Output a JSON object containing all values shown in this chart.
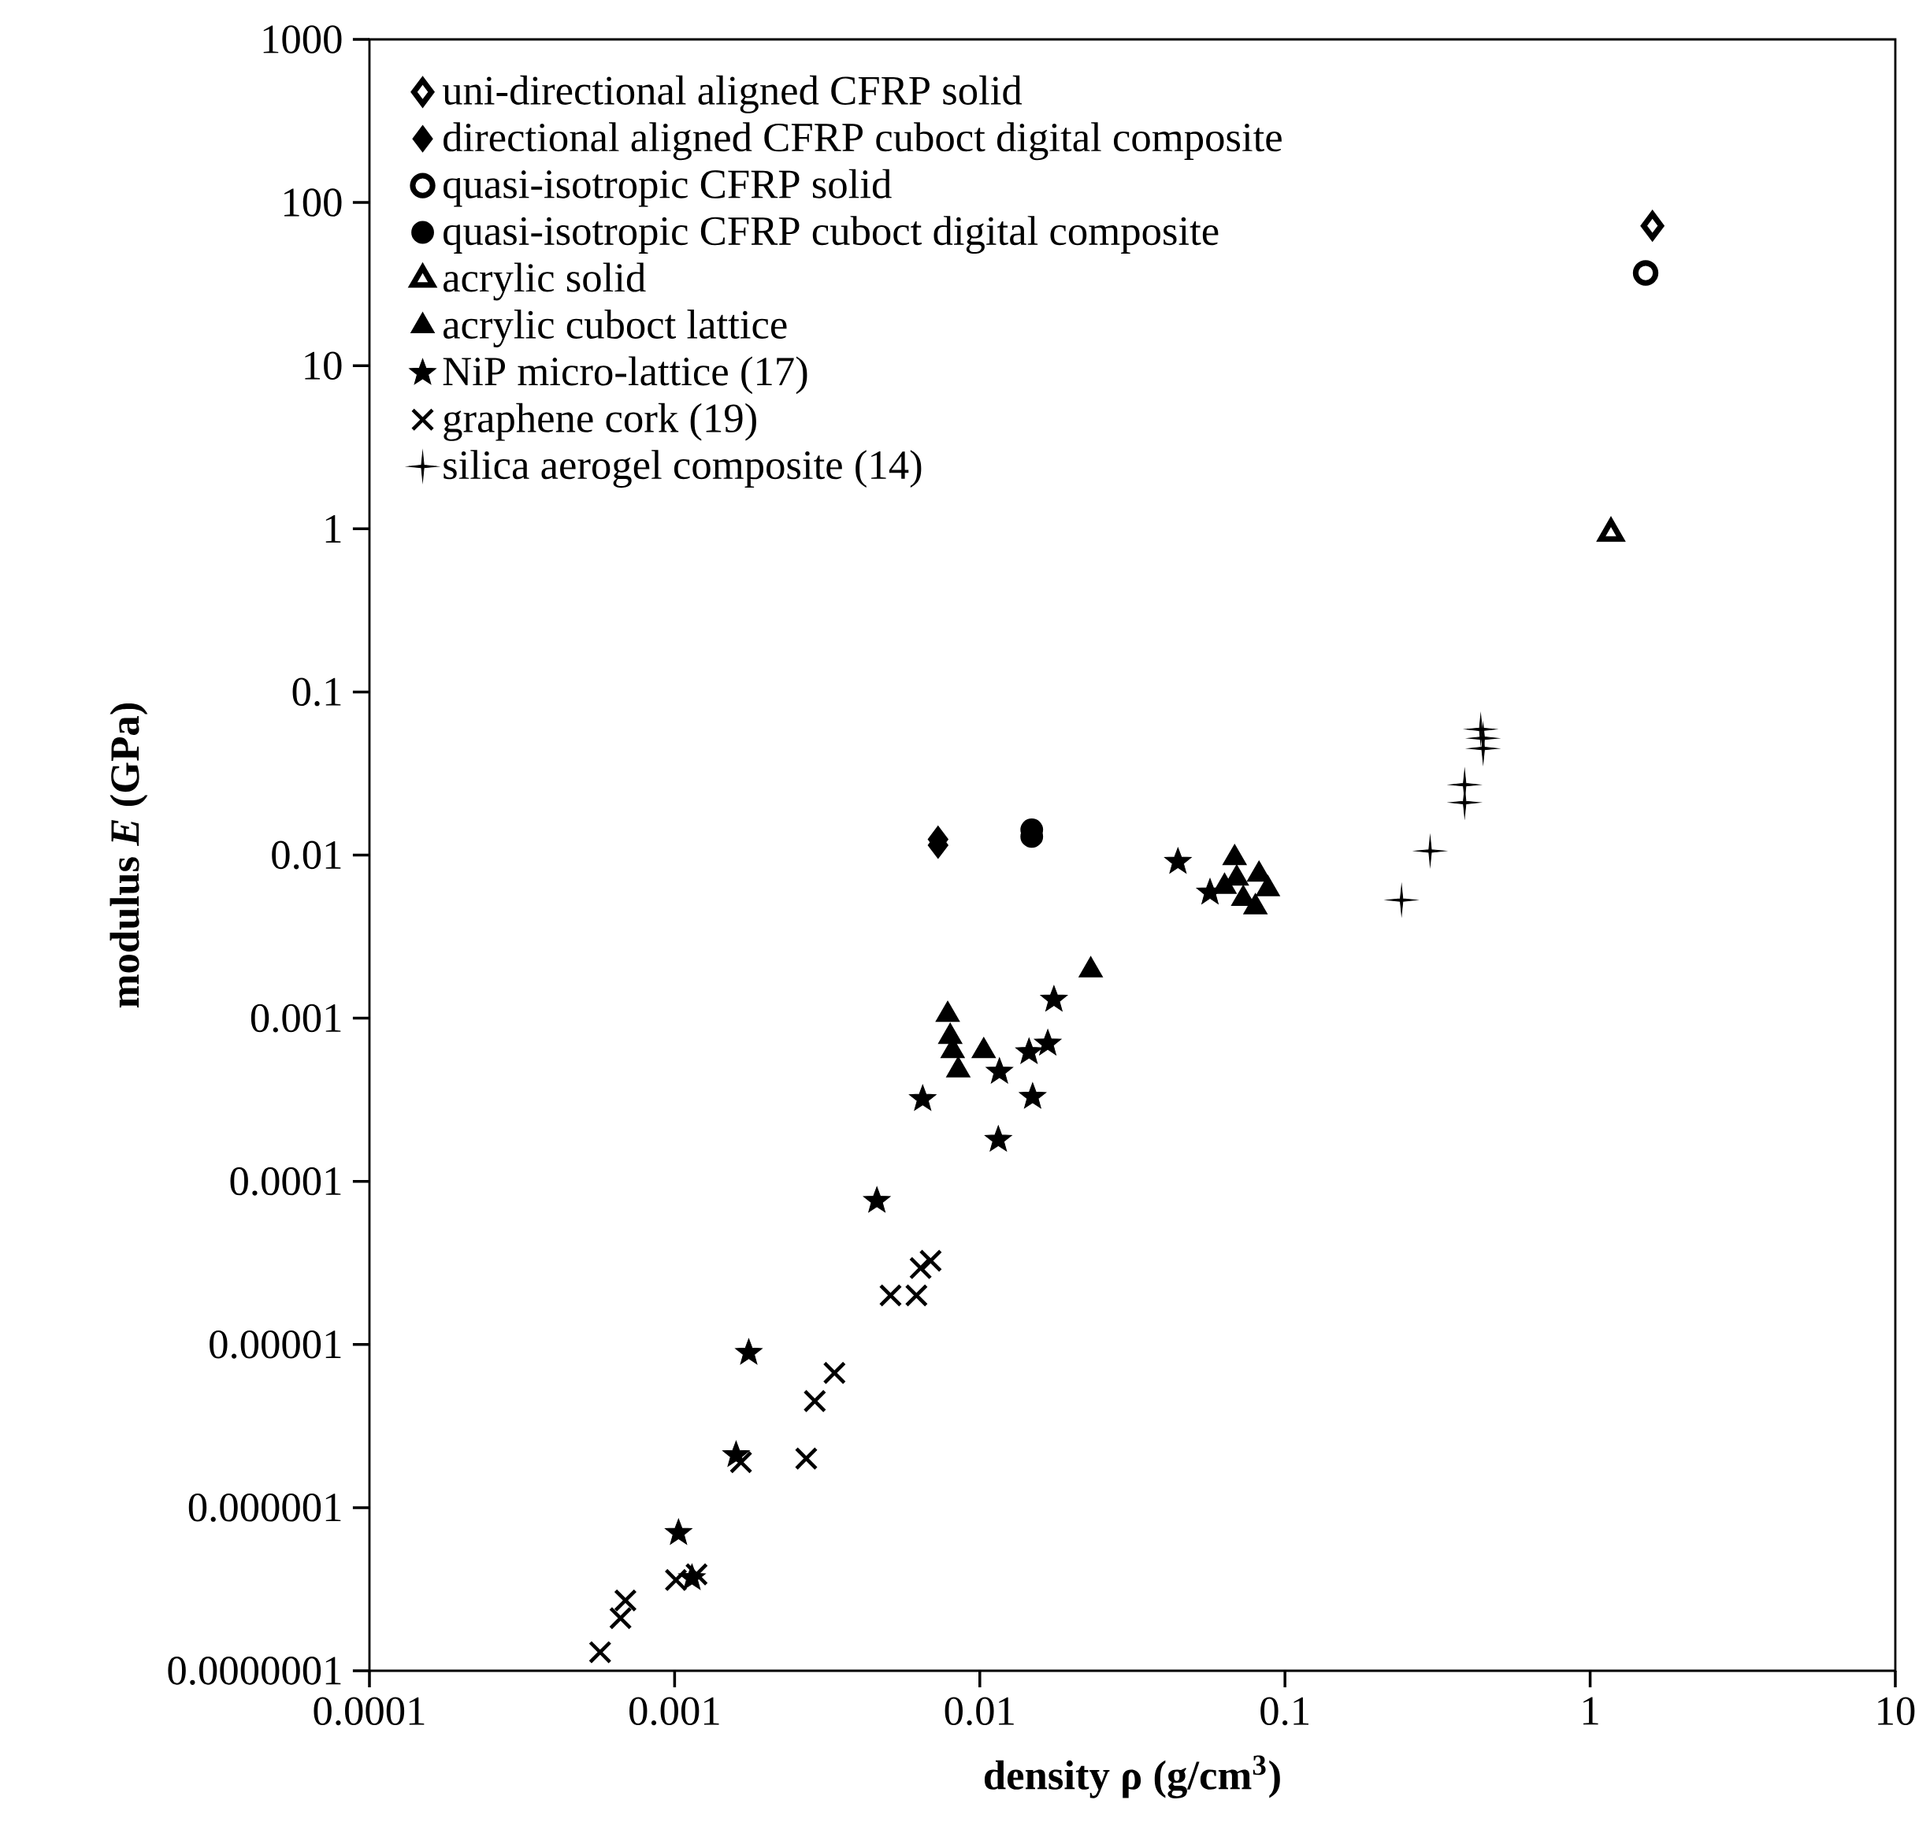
{
  "chart_data": {
    "type": "scatter",
    "xlabel": "density ρ (g/cm$^{3}$)",
    "ylabel": "modulus *E* (GPa)",
    "log": "xy",
    "grid": false,
    "legend": "top left",
    "xlim": [
      0.0001,
      10
    ],
    "ylim": [
      1e-07,
      1000
    ],
    "xticks": [
      {
        "value": 0.0001,
        "label": "0.0001"
      },
      {
        "value": 0.001,
        "label": "0.001"
      },
      {
        "value": 0.01,
        "label": "0.01"
      },
      {
        "value": 0.1,
        "label": "0.1"
      },
      {
        "value": 1,
        "label": "1"
      },
      {
        "value": 10,
        "label": "10"
      }
    ],
    "yticks": [
      {
        "value": 1e-07,
        "label": "0.0000001"
      },
      {
        "value": 1e-06,
        "label": "0.000001"
      },
      {
        "value": 1e-05,
        "label": "0.00001"
      },
      {
        "value": 0.0001,
        "label": "0.0001"
      },
      {
        "value": 0.001,
        "label": "0.001"
      },
      {
        "value": 0.01,
        "label": "0.01"
      },
      {
        "value": 0.1,
        "label": "0.1"
      },
      {
        "value": 1,
        "label": "1"
      },
      {
        "value": 10,
        "label": "10"
      },
      {
        "value": 100,
        "label": "100"
      },
      {
        "value": 1000,
        "label": "1000"
      }
    ],
    "series": [
      {
        "name": "uni-directional aligned CFRP solid",
        "color": "#000000",
        "colors": [
          "#ffffff"
        ],
        "marker": "diamond",
        "x": [
          1.6
        ],
        "values": [
          72
        ]
      },
      {
        "name": "directional aligned CFRP cuboct digital composite",
        "color": "#000000",
        "marker": "diamond",
        "x": [
          0.0073,
          0.0073
        ],
        "values": [
          0.0125,
          0.0115
        ]
      },
      {
        "name": "quasi-isotropic CFRP solid",
        "color": "#000000",
        "colors": [
          "#ffffff"
        ],
        "marker": "circle",
        "x": [
          1.52
        ],
        "values": [
          37
        ]
      },
      {
        "name": "quasi-isotropic CFRP cuboct digital composite",
        "color": "#000000",
        "marker": "circle",
        "x": [
          0.0148,
          0.0148
        ],
        "values": [
          0.0143,
          0.013
        ]
      },
      {
        "name": "acrylic solid",
        "color": "#000000",
        "colors": [
          "#ffffff"
        ],
        "marker": "triangle",
        "x": [
          1.17
        ],
        "values": [
          0.94
        ]
      },
      {
        "name": "acrylic cuboct lattice",
        "color": "#000000",
        "marker": "triangle",
        "x": [
          0.0684,
          0.0822,
          0.0634,
          0.073,
          0.08,
          0.0695,
          0.0879,
          0.00785,
          0.008,
          0.00815,
          0.0085,
          0.0103,
          0.0231
        ],
        "values": [
          0.0096,
          0.0076,
          0.0064,
          0.0054,
          0.0048,
          0.0072,
          0.0062,
          0.00105,
          0.00077,
          0.00063,
          0.00048,
          0.00063,
          0.00197
        ]
      },
      {
        "name": "NiP micro-lattice (17)",
        "color": "#000000",
        "marker": "star",
        "x": [
          0.0446,
          0.0568,
          0.0175,
          0.0167,
          0.0145,
          0.0116,
          0.0149,
          0.0065,
          0.0115,
          0.0046,
          0.00175,
          0.00159,
          0.00103,
          0.00114
        ],
        "values": [
          0.0091,
          0.0059,
          0.0013,
          0.0007,
          0.00062,
          0.00047,
          0.00033,
          0.00032,
          0.00018,
          7.6e-05,
          8.9e-06,
          2.1e-06,
          7e-07,
          3.7e-07
        ]
      },
      {
        "name": "graphene cork (19)",
        "color": "#000000",
        "marker": "cross",
        "x": [
          0.0064,
          0.0069,
          0.0051,
          0.0062,
          0.00334,
          0.00288,
          0.0027,
          0.00165,
          0.00101,
          0.00118,
          0.00069,
          0.000665,
          0.00057
        ],
        "values": [
          2.94e-05,
          3.26e-05,
          2e-05,
          2e-05,
          6.7e-06,
          4.5e-06,
          2e-06,
          1.9e-06,
          3.6e-07,
          3.9e-07,
          2.7e-07,
          2.1e-07,
          1.3e-07
        ]
      },
      {
        "name": "silica aerogel composite (14)",
        "color": "#000000",
        "x": [
          0.438,
          0.446,
          0.446,
          0.388,
          0.388,
          0.299,
          0.241
        ],
        "values": [
          0.059,
          0.052,
          0.045,
          0.027,
          0.021,
          0.0106,
          0.0053
        ]
      }
    ]
  }
}
